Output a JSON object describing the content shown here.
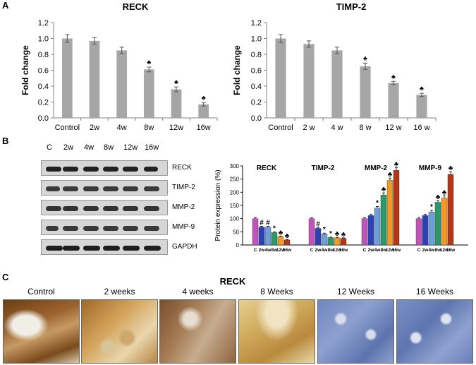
{
  "figure": {
    "panel_a_letter": "A",
    "panel_b_letter": "B",
    "panel_c_letter": "C"
  },
  "chart_data": [
    {
      "type": "bar",
      "title": "RECK",
      "ylabel": "Fold change",
      "xlabel": "",
      "categories": [
        "Control",
        "2w",
        "4w",
        "8w",
        "12w",
        "16w"
      ],
      "values": [
        1.0,
        0.97,
        0.85,
        0.61,
        0.36,
        0.17
      ],
      "errors": [
        0.05,
        0.04,
        0.04,
        0.03,
        0.03,
        0.02
      ],
      "significance": [
        "",
        "",
        "",
        "♣",
        "♣",
        "♣"
      ],
      "ylim": [
        0,
        1.2
      ],
      "yticks": [
        "0.0",
        "0.2",
        "0.4",
        "0.6",
        "0.8",
        "1.0",
        "1.2"
      ],
      "color": "#a6a6a6"
    },
    {
      "type": "bar",
      "title": "TIMP-2",
      "ylabel": "Fold change",
      "xlabel": "",
      "categories": [
        "Control",
        "2 w",
        "4 w",
        "8 w",
        "12 w",
        "16 w"
      ],
      "values": [
        1.0,
        0.93,
        0.85,
        0.65,
        0.44,
        0.29
      ],
      "errors": [
        0.05,
        0.04,
        0.04,
        0.04,
        0.02,
        0.02
      ],
      "significance": [
        "",
        "",
        "",
        "♣",
        "♣",
        "♣"
      ],
      "ylim": [
        0,
        1.2
      ],
      "yticks": [
        "0.0",
        "0.2",
        "0.4",
        "0.6",
        "0.8",
        "1.0",
        "1.2"
      ],
      "color": "#a6a6a6"
    },
    {
      "type": "bar",
      "title": "",
      "ylabel": "Protein expression (%)",
      "ylim": [
        0,
        300
      ],
      "yticks": [
        "0",
        "50",
        "100",
        "150",
        "200",
        "250",
        "300"
      ],
      "tick_labels": [
        "C",
        "2w",
        "4w",
        "8w",
        "12w",
        "16w"
      ],
      "series_colors": [
        "#c055b8",
        "#2c41b8",
        "#6f9fd8",
        "#2a9a6a",
        "#f39a26",
        "#b53614"
      ],
      "groups": [
        {
          "name": "RECK",
          "values": [
            100,
            68,
            68,
            47,
            32,
            19
          ],
          "errors": [
            4,
            3,
            3,
            3,
            2,
            2
          ],
          "marks": [
            "",
            "#",
            "#",
            "*",
            "♣",
            "♣"
          ]
        },
        {
          "name": "TIMP-2",
          "values": [
            100,
            63,
            42,
            28,
            27,
            25
          ],
          "errors": [
            4,
            3,
            3,
            2,
            2,
            2
          ],
          "marks": [
            "",
            "#",
            "*",
            "*",
            "♣",
            "♣"
          ]
        },
        {
          "name": "MMP-2",
          "values": [
            100,
            112,
            140,
            190,
            245,
            283
          ],
          "errors": [
            4,
            5,
            6,
            8,
            9,
            10
          ],
          "marks": [
            "",
            "",
            "*",
            "♣",
            "♣",
            "♣"
          ]
        },
        {
          "name": "MMP-9",
          "values": [
            100,
            112,
            125,
            162,
            178,
            268
          ],
          "errors": [
            4,
            5,
            6,
            7,
            8,
            10
          ],
          "marks": [
            "",
            "",
            "*",
            "♣",
            "♣",
            "♣"
          ]
        }
      ]
    }
  ],
  "blot": {
    "lanes": [
      "C",
      "2w",
      "4w",
      "8w",
      "12w",
      "16w"
    ],
    "rows": [
      "RECK",
      "TIMP-2",
      "MMP-2",
      "MMP-9",
      "GAPDH"
    ]
  },
  "panel_c": {
    "title": "RECK",
    "captions": [
      "Control",
      "2 weeks",
      "4 weeks",
      "8 Weeks",
      "12 Weeks",
      "16 Weeks"
    ]
  }
}
